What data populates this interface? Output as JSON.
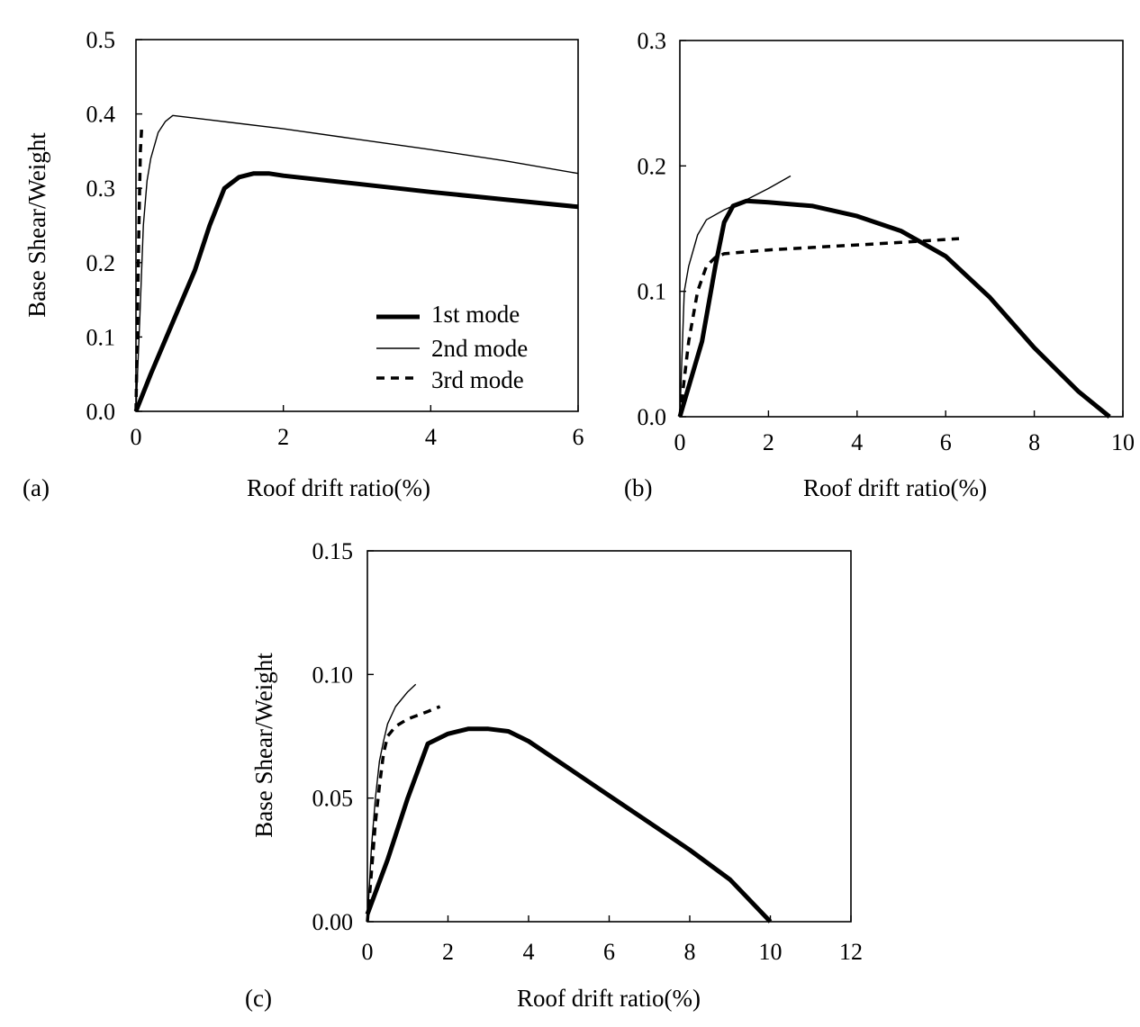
{
  "chart_data": [
    {
      "panel": "(a)",
      "type": "line",
      "xlabel": "Roof drift ratio(%)",
      "ylabel": "Base Shear/Weight",
      "xlim": [
        0,
        6
      ],
      "ylim": [
        0,
        0.5
      ],
      "xticks": [
        "0",
        "2",
        "4",
        "6"
      ],
      "yticks": [
        "0.0",
        "0.1",
        "0.2",
        "0.3",
        "0.4",
        "0.5"
      ],
      "legend": [
        "1st mode",
        "2nd mode",
        "3rd mode"
      ],
      "legend_position": "bottom-right",
      "series": [
        {
          "name": "1st mode",
          "style": "thick",
          "x": [
            0,
            0.2,
            0.5,
            0.8,
            1.0,
            1.2,
            1.4,
            1.6,
            1.8,
            2.0,
            3.0,
            4.0,
            5.0,
            6.0
          ],
          "y": [
            0,
            0.05,
            0.12,
            0.19,
            0.25,
            0.3,
            0.315,
            0.32,
            0.32,
            0.317,
            0.306,
            0.295,
            0.285,
            0.275
          ]
        },
        {
          "name": "2nd mode",
          "style": "thin",
          "x": [
            0,
            0.05,
            0.1,
            0.15,
            0.2,
            0.3,
            0.4,
            0.5,
            1.0,
            2.0,
            3.0,
            4.0,
            5.0,
            6.0
          ],
          "y": [
            0,
            0.12,
            0.25,
            0.31,
            0.34,
            0.375,
            0.39,
            0.398,
            0.392,
            0.38,
            0.366,
            0.352,
            0.337,
            0.32
          ]
        },
        {
          "name": "3rd mode",
          "style": "dashed",
          "x": [
            0,
            0.02,
            0.04,
            0.06,
            0.08
          ],
          "y": [
            0,
            0.12,
            0.25,
            0.35,
            0.385
          ]
        }
      ]
    },
    {
      "panel": "(b)",
      "type": "line",
      "xlabel": "Roof drift ratio(%)",
      "ylabel": "",
      "xlim": [
        0,
        10
      ],
      "ylim": [
        0,
        0.3
      ],
      "xticks": [
        "0",
        "2",
        "4",
        "6",
        "8",
        "10"
      ],
      "yticks": [
        "0.0",
        "0.1",
        "0.2",
        "0.3"
      ],
      "series": [
        {
          "name": "1st mode",
          "style": "thick",
          "x": [
            0,
            0.5,
            0.8,
            1.0,
            1.2,
            1.5,
            2.0,
            3.0,
            4.0,
            5.0,
            6.0,
            7.0,
            8.0,
            9.0,
            9.7
          ],
          "y": [
            0,
            0.06,
            0.12,
            0.155,
            0.168,
            0.172,
            0.171,
            0.168,
            0.16,
            0.148,
            0.128,
            0.095,
            0.055,
            0.02,
            0.0
          ]
        },
        {
          "name": "2nd mode",
          "style": "thin",
          "x": [
            0,
            0.1,
            0.2,
            0.4,
            0.6,
            1.0,
            1.5,
            2.0,
            2.5
          ],
          "y": [
            0,
            0.1,
            0.12,
            0.145,
            0.157,
            0.165,
            0.173,
            0.182,
            0.192
          ]
        },
        {
          "name": "3rd mode",
          "style": "dashed",
          "x": [
            0,
            0.1,
            0.2,
            0.4,
            0.6,
            0.8,
            1.0,
            2.0,
            3.0,
            4.0,
            5.0,
            6.3
          ],
          "y": [
            0,
            0.03,
            0.06,
            0.1,
            0.12,
            0.127,
            0.13,
            0.133,
            0.135,
            0.137,
            0.139,
            0.142
          ]
        }
      ]
    },
    {
      "panel": "(c)",
      "type": "line",
      "xlabel": "Roof drift ratio(%)",
      "ylabel": "Base Shear/Weight",
      "xlim": [
        0,
        12
      ],
      "ylim": [
        0,
        0.15
      ],
      "xticks": [
        "0",
        "2",
        "4",
        "6",
        "8",
        "10",
        "12"
      ],
      "yticks": [
        "0.00",
        "0.05",
        "0.10",
        "0.15"
      ],
      "series": [
        {
          "name": "1st mode",
          "style": "thick",
          "x": [
            0,
            0.5,
            1.0,
            1.5,
            2.0,
            2.5,
            3.0,
            3.5,
            4.0,
            5.0,
            6.0,
            7.0,
            8.0,
            9.0,
            10.0
          ],
          "y": [
            0.003,
            0.025,
            0.05,
            0.072,
            0.076,
            0.078,
            0.078,
            0.077,
            0.073,
            0.062,
            0.051,
            0.04,
            0.029,
            0.017,
            0.0
          ]
        },
        {
          "name": "2nd mode",
          "style": "thin",
          "x": [
            0,
            0.1,
            0.2,
            0.3,
            0.4,
            0.5,
            0.7,
            1.0,
            1.2
          ],
          "y": [
            0,
            0.03,
            0.05,
            0.065,
            0.073,
            0.08,
            0.087,
            0.093,
            0.096
          ]
        },
        {
          "name": "3rd mode",
          "style": "dashed",
          "x": [
            0,
            0.1,
            0.2,
            0.3,
            0.4,
            0.5,
            0.7,
            1.0,
            1.5,
            1.8
          ],
          "y": [
            0,
            0.02,
            0.04,
            0.055,
            0.068,
            0.075,
            0.079,
            0.082,
            0.085,
            0.087
          ]
        }
      ]
    }
  ]
}
